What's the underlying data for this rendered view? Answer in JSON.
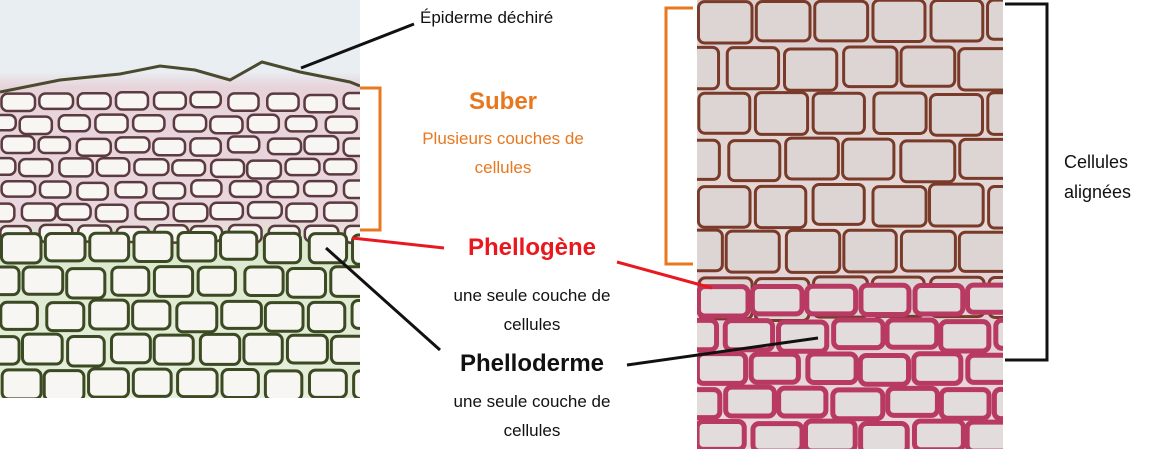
{
  "labels": {
    "epiderme": "Épiderme déchiré",
    "suber_title": "Suber",
    "suber_desc_1": "Plusieurs couches de",
    "suber_desc_2": "cellules",
    "phellogene_title": "Phellogène",
    "phellogene_desc_1": "une seule couche de",
    "phellogene_desc_2": "cellules",
    "phelloderme_title": "Phelloderme",
    "phelloderme_desc_1": "une seule couche de",
    "phelloderme_desc_2": "cellules",
    "right_line_1": "Cellules",
    "right_line_2": "alignées"
  },
  "colors": {
    "suber": "#E8781E",
    "phellogene": "#E8181E",
    "leader_black": "#111111",
    "cell_wall_dark": "#3a3a2a",
    "cell_stain_pink": "#c9507a",
    "cell_fill_green": "#dfe9cf",
    "cell_fill_white": "#f7f6f2"
  }
}
